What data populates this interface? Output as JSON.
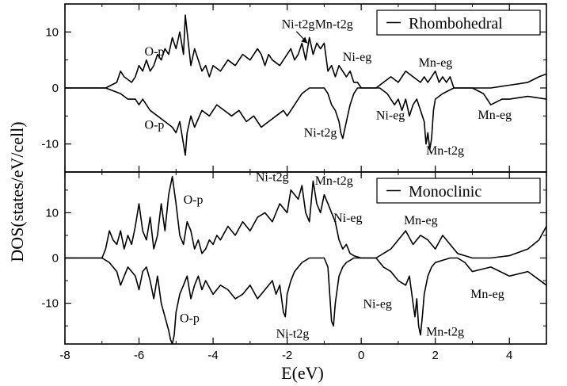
{
  "chart_data": {
    "type": "line",
    "xlabel": "E(eV)",
    "ylabel": "DOS(states/eV/cell)",
    "xlim": [
      -8,
      5
    ],
    "x_ticks": [
      -8,
      -6,
      -4,
      -2,
      0,
      2,
      4
    ],
    "x_tick_labels": [
      "-8",
      "-6",
      "-4",
      "-2",
      "0",
      "2",
      "4"
    ],
    "panels": [
      {
        "id": "rhombohedral",
        "ylim": [
          -15,
          15
        ],
        "y_ticks": [
          -10,
          0,
          10
        ],
        "y_tick_labels": [
          "-10",
          "0",
          "10"
        ],
        "legend": "Rhombohedral",
        "legend_position": "top-right",
        "series": [
          {
            "spin": "up",
            "x": [
              -8,
              -6.9,
              -6.6,
              -6.5,
              -6.4,
              -6.2,
              -6.1,
              -6.0,
              -5.9,
              -5.8,
              -5.7,
              -5.6,
              -5.5,
              -5.4,
              -5.3,
              -5.2,
              -5.1,
              -5.0,
              -4.9,
              -4.8,
              -4.75,
              -4.7,
              -4.6,
              -4.5,
              -4.4,
              -4.3,
              -4.2,
              -4.1,
              -4.0,
              -3.8,
              -3.6,
              -3.4,
              -3.2,
              -3.0,
              -2.8,
              -2.7,
              -2.6,
              -2.5,
              -2.4,
              -2.2,
              -2.0,
              -1.9,
              -1.8,
              -1.7,
              -1.6,
              -1.5,
              -1.4,
              -1.3,
              -1.2,
              -1.1,
              -1.0,
              -0.9,
              -0.8,
              -0.7,
              -0.6,
              -0.5,
              -0.4,
              -0.3,
              -0.2,
              -0.1,
              0.0,
              0.4,
              0.6,
              0.8,
              1.0,
              1.2,
              1.4,
              1.6,
              1.7,
              1.8,
              1.9,
              2.0,
              2.1,
              2.2,
              2.3,
              2.4,
              2.5,
              3.0,
              3.5,
              4.0,
              4.5,
              4.8,
              5.0
            ],
            "y": [
              0,
              0,
              1,
              3,
              2,
              1,
              2,
              4,
              3,
              5,
              3,
              4,
              6,
              5,
              7,
              6,
              9,
              7,
              10,
              6,
              13,
              10,
              4,
              7,
              5,
              3,
              4,
              2,
              4,
              3,
              5,
              4,
              6,
              5,
              7,
              6,
              4,
              6,
              5,
              4,
              6,
              7,
              5,
              6,
              8,
              5,
              9,
              6,
              8,
              7,
              8,
              3,
              4,
              2,
              4,
              3,
              2,
              3,
              1,
              1,
              0,
              0,
              1,
              2,
              1,
              3,
              2,
              1,
              2,
              1,
              2,
              3,
              1,
              2,
              1,
              2,
              0,
              0,
              0,
              0.5,
              1,
              2,
              2.5
            ]
          },
          {
            "spin": "down",
            "x": [
              -8,
              -6.9,
              -6.5,
              -6.3,
              -6.1,
              -6.0,
              -5.9,
              -5.7,
              -5.5,
              -5.3,
              -5.1,
              -5.0,
              -4.9,
              -4.8,
              -4.75,
              -4.7,
              -4.6,
              -4.5,
              -4.3,
              -4.1,
              -3.9,
              -3.7,
              -3.5,
              -3.3,
              -3.1,
              -2.9,
              -2.7,
              -2.5,
              -2.3,
              -2.1,
              -2.0,
              -1.9,
              -1.8,
              -1.7,
              -1.6,
              -1.5,
              -1.4,
              -1.35,
              -1.0,
              -0.9,
              -0.8,
              -0.7,
              -0.6,
              -0.55,
              -0.5,
              -0.4,
              -0.3,
              -0.2,
              -0.1,
              0.0,
              0.5,
              0.7,
              0.9,
              1.0,
              1.1,
              1.2,
              1.3,
              1.4,
              1.5,
              1.6,
              1.7,
              1.75,
              1.8,
              1.85,
              1.9,
              1.95,
              2.0,
              2.2,
              2.5,
              3.0,
              3.3,
              3.5,
              3.8,
              4.0,
              4.5,
              5.0
            ],
            "y": [
              0,
              0,
              -1,
              -2,
              -2,
              -3,
              -2,
              -4,
              -5,
              -6,
              -7,
              -8,
              -6,
              -10,
              -12,
              -8,
              -5,
              -7,
              -4,
              -5,
              -3,
              -4,
              -5,
              -4,
              -6,
              -5,
              -7,
              -6,
              -5,
              -4,
              -5,
              -4,
              -3,
              -2,
              -1,
              -0.5,
              0,
              0,
              0,
              -1,
              -3,
              -4,
              -6,
              -8,
              -9,
              -6,
              -3,
              -1,
              0,
              0,
              0,
              -1,
              -3,
              -2,
              -4,
              -2,
              -5,
              -3,
              -2,
              -4,
              -6,
              -10,
              -8,
              -11,
              -9,
              -4,
              -2,
              -1,
              0,
              0,
              -1,
              -3,
              -2,
              -2,
              -1.5,
              -2
            ]
          }
        ],
        "annotations": [
          {
            "text": "O-p",
            "x": -5.85,
            "y": 5.8
          },
          {
            "text": "Ni-t2g",
            "x": -2.15,
            "y": 10.7
          },
          {
            "text": "Mn-t2g",
            "x": -1.25,
            "y": 10.7
          },
          {
            "text": "Ni-eg",
            "x": -0.5,
            "y": 4.8
          },
          {
            "text": "Mn-eg",
            "x": 1.55,
            "y": 3.8
          },
          {
            "text": "O-p",
            "x": -5.85,
            "y": -7.3
          },
          {
            "text": "Ni-t2g",
            "x": -1.55,
            "y": -8.7
          },
          {
            "text": "Ni-eg",
            "x": 0.4,
            "y": -5.6
          },
          {
            "text": "Mn-t2g",
            "x": 1.75,
            "y": -11.9
          },
          {
            "text": "Mn-eg",
            "x": 3.15,
            "y": -5.5
          }
        ]
      },
      {
        "id": "monoclinic",
        "ylim": [
          -19,
          19
        ],
        "y_ticks": [
          -10,
          0,
          10
        ],
        "y_tick_labels": [
          "-10",
          "0",
          "10"
        ],
        "legend": "Monoclinic",
        "legend_position": "top-right",
        "series": [
          {
            "spin": "up",
            "x": [
              -8,
              -7.0,
              -6.9,
              -6.8,
              -6.7,
              -6.6,
              -6.5,
              -6.4,
              -6.3,
              -6.2,
              -6.1,
              -6.0,
              -5.9,
              -5.8,
              -5.7,
              -5.6,
              -5.5,
              -5.4,
              -5.3,
              -5.2,
              -5.1,
              -5.0,
              -4.9,
              -4.8,
              -4.7,
              -4.6,
              -4.5,
              -4.4,
              -4.3,
              -4.2,
              -4.1,
              -4.0,
              -3.9,
              -3.8,
              -3.6,
              -3.4,
              -3.2,
              -3.0,
              -2.8,
              -2.6,
              -2.4,
              -2.2,
              -2.0,
              -1.9,
              -1.8,
              -1.7,
              -1.6,
              -1.5,
              -1.4,
              -1.3,
              -1.2,
              -1.1,
              -1.0,
              -0.9,
              -0.8,
              -0.7,
              -0.6,
              -0.5,
              -0.4,
              -0.3,
              -0.2,
              0.0,
              0.2,
              0.4,
              0.6,
              0.8,
              1.0,
              1.2,
              1.4,
              1.6,
              1.8,
              2.0,
              2.2,
              2.4,
              2.6,
              2.8,
              3.0,
              3.5,
              4.0,
              4.5,
              4.8,
              5.0
            ],
            "y": [
              0,
              0,
              2,
              6,
              4,
              3,
              6,
              2,
              5,
              3,
              7,
              12,
              6,
              4,
              9,
              2,
              5,
              12,
              6,
              14,
              18,
              12,
              5,
              3,
              8,
              6,
              2,
              4,
              1,
              2,
              4,
              3,
              5,
              4,
              7,
              5,
              8,
              6,
              9,
              10,
              8,
              12,
              10,
              15,
              14,
              13,
              16,
              10,
              8,
              17,
              12,
              10,
              14,
              12,
              10,
              8,
              4,
              2,
              3,
              1,
              0.5,
              0,
              0,
              0,
              1,
              2,
              4,
              6,
              3,
              5,
              4,
              2,
              5,
              3,
              1,
              0.5,
              0,
              0,
              0.5,
              2,
              4,
              7
            ]
          },
          {
            "spin": "down",
            "x": [
              -8,
              -7.0,
              -6.8,
              -6.6,
              -6.5,
              -6.3,
              -6.1,
              -6.0,
              -5.9,
              -5.8,
              -5.7,
              -5.6,
              -5.5,
              -5.4,
              -5.3,
              -5.2,
              -5.15,
              -5.1,
              -5.05,
              -5.0,
              -4.9,
              -4.8,
              -4.7,
              -4.6,
              -4.5,
              -4.4,
              -4.3,
              -4.2,
              -4.0,
              -3.8,
              -3.6,
              -3.4,
              -3.2,
              -3.0,
              -2.8,
              -2.6,
              -2.4,
              -2.3,
              -2.2,
              -2.1,
              -2.05,
              -2.0,
              -1.9,
              -1.8,
              -1.6,
              -1.5,
              -1.4,
              -1.0,
              -0.9,
              -0.85,
              -0.8,
              -0.75,
              -0.7,
              -0.6,
              -0.5,
              -0.4,
              -0.3,
              -0.2,
              0.0,
              0.4,
              0.6,
              0.8,
              1.0,
              1.2,
              1.3,
              1.4,
              1.45,
              1.5,
              1.55,
              1.6,
              1.65,
              1.7,
              1.8,
              1.9,
              2.0,
              2.2,
              2.4,
              2.6,
              2.8,
              3.0,
              3.5,
              4.0,
              4.5,
              5.0
            ],
            "y": [
              0,
              0,
              -1,
              -3,
              -6,
              -2,
              -4,
              -7,
              -3,
              -2,
              -5,
              -9,
              -4,
              -10,
              -13,
              -16,
              -18,
              -19,
              -17,
              -12,
              -8,
              -6,
              -4,
              -9,
              -6,
              -4,
              -7,
              -5,
              -8,
              -6,
              -7,
              -9,
              -8,
              -6,
              -9,
              -7,
              -5,
              -8,
              -6,
              -12,
              -13,
              -8,
              -5,
              -3,
              -1,
              -0.5,
              0,
              0,
              -2,
              -8,
              -14,
              -15,
              -10,
              -4,
              -2,
              -1,
              -0.5,
              0,
              0,
              0,
              -2,
              -3,
              -5,
              -6,
              -4,
              -10,
              -13,
              -9,
              -15,
              -17,
              -13,
              -8,
              -4,
              -2,
              -1,
              -0.5,
              0,
              0,
              -1,
              -3,
              -2,
              -4,
              -3,
              -6
            ]
          }
        ],
        "annotations": [
          {
            "text": "O-p",
            "x": -4.8,
            "y": 12
          },
          {
            "text": "Ni-t2g",
            "x": -2.85,
            "y": 17
          },
          {
            "text": "Mn-t2g",
            "x": -1.25,
            "y": 16.2
          },
          {
            "text": "Ni-eg",
            "x": -0.75,
            "y": 8
          },
          {
            "text": "Mn-eg",
            "x": 1.15,
            "y": 7.4
          },
          {
            "text": "O-p",
            "x": -4.9,
            "y": -14.2
          },
          {
            "text": "Ni-t2g",
            "x": -2.3,
            "y": -17.6
          },
          {
            "text": "Ni-eg",
            "x": 0.05,
            "y": -11
          },
          {
            "text": "Mn-t2g",
            "x": 1.75,
            "y": -17.2
          },
          {
            "text": "Mn-eg",
            "x": 2.95,
            "y": -8.8
          }
        ]
      }
    ]
  },
  "colors": {
    "line": "#000000",
    "background": "#ffffff"
  }
}
